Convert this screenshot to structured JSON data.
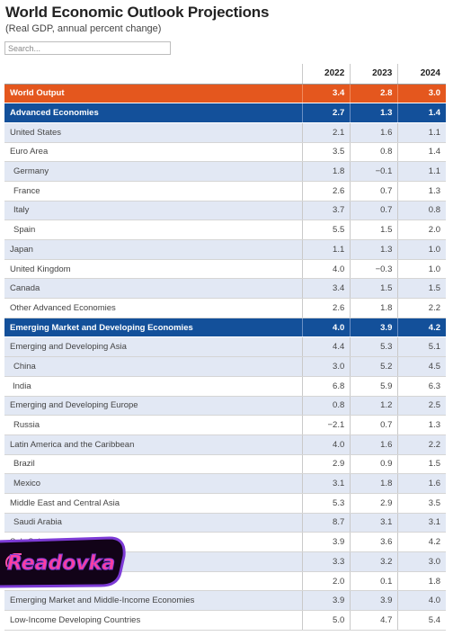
{
  "header": {
    "title": "World Economic Outlook Projections",
    "subtitle": "(Real GDP, annual percent change)"
  },
  "search": {
    "placeholder": "Search..."
  },
  "table": {
    "columns": [
      "2022",
      "2023",
      "2024"
    ],
    "rows": [
      {
        "label": "World Output",
        "values": [
          "3.4",
          "2.8",
          "3.0"
        ]
      },
      {
        "label": "Advanced Economies",
        "values": [
          "2.7",
          "1.3",
          "1.4"
        ]
      },
      {
        "label": "United States",
        "values": [
          "2.1",
          "1.6",
          "1.1"
        ]
      },
      {
        "label": "Euro Area",
        "values": [
          "3.5",
          "0.8",
          "1.4"
        ]
      },
      {
        "label": "Germany",
        "values": [
          "1.8",
          "−0.1",
          "1.1"
        ]
      },
      {
        "label": "France",
        "values": [
          "2.6",
          "0.7",
          "1.3"
        ]
      },
      {
        "label": "Italy",
        "values": [
          "3.7",
          "0.7",
          "0.8"
        ]
      },
      {
        "label": "Spain",
        "values": [
          "5.5",
          "1.5",
          "2.0"
        ]
      },
      {
        "label": "Japan",
        "values": [
          "1.1",
          "1.3",
          "1.0"
        ]
      },
      {
        "label": "United Kingdom",
        "values": [
          "4.0",
          "−0.3",
          "1.0"
        ]
      },
      {
        "label": "Canada",
        "values": [
          "3.4",
          "1.5",
          "1.5"
        ]
      },
      {
        "label": "Other Advanced Economies",
        "values": [
          "2.6",
          "1.8",
          "2.2"
        ]
      },
      {
        "label": "Emerging Market and Developing Economies",
        "values": [
          "4.0",
          "3.9",
          "4.2"
        ]
      },
      {
        "label": "Emerging and Developing Asia",
        "values": [
          "4.4",
          "5.3",
          "5.1"
        ]
      },
      {
        "label": "China",
        "values": [
          "3.0",
          "5.2",
          "4.5"
        ]
      },
      {
        "label": "India",
        "values": [
          "6.8",
          "5.9",
          "6.3"
        ]
      },
      {
        "label": "Emerging and Developing Europe",
        "values": [
          "0.8",
          "1.2",
          "2.5"
        ]
      },
      {
        "label": "Russia",
        "values": [
          "−2.1",
          "0.7",
          "1.3"
        ]
      },
      {
        "label": "Latin America and the Caribbean",
        "values": [
          "4.0",
          "1.6",
          "2.2"
        ]
      },
      {
        "label": "Brazil",
        "values": [
          "2.9",
          "0.9",
          "1.5"
        ]
      },
      {
        "label": "Mexico",
        "values": [
          "3.1",
          "1.8",
          "1.6"
        ]
      },
      {
        "label": "Middle East and Central Asia",
        "values": [
          "5.3",
          "2.9",
          "3.5"
        ]
      },
      {
        "label": "Saudi Arabia",
        "values": [
          "8.7",
          "3.1",
          "3.1"
        ]
      },
      {
        "label": "Sub-Saharan Africa",
        "values": [
          "3.9",
          "3.6",
          "4.2"
        ]
      },
      {
        "label": "",
        "values": [
          "3.3",
          "3.2",
          "3.0"
        ]
      },
      {
        "label": "South Africa",
        "values": [
          "2.0",
          "0.1",
          "1.8"
        ]
      },
      {
        "label": "Emerging Market and Middle-Income Economies",
        "values": [
          "3.9",
          "3.9",
          "4.0"
        ]
      },
      {
        "label": "Low-Income Developing Countries",
        "values": [
          "5.0",
          "4.7",
          "5.4"
        ]
      }
    ]
  },
  "watermark": {
    "text": "Readovka",
    "fill": "#e03b8b",
    "outline": "#8a2be2"
  }
}
